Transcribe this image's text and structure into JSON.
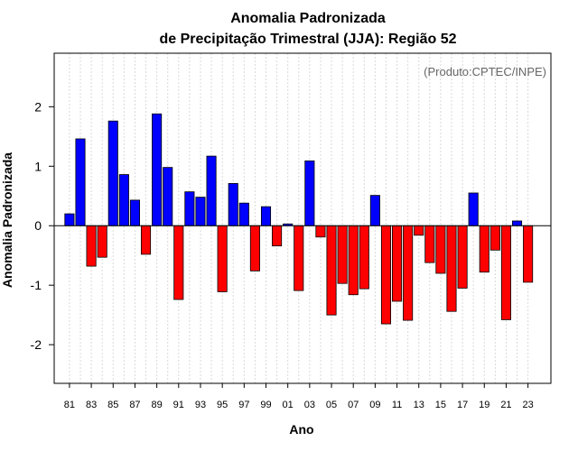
{
  "chart_data": {
    "type": "bar",
    "title_line1": "Anomalia Padronizada",
    "title_line2": "de Precipitação Trimestral (JJA): Região 52",
    "xlabel": "Ano",
    "ylabel": "Anomalia Padronizada",
    "note": "(Produto:CPTEC/INPE)",
    "ylim": [
      -2.65,
      2.9
    ],
    "yticks": [
      -2,
      -1,
      0,
      1,
      2
    ],
    "ytick_labels": [
      "-2",
      "-1",
      "0",
      "1",
      "2"
    ],
    "xtick_labels": [
      "81",
      "83",
      "85",
      "87",
      "89",
      "91",
      "93",
      "95",
      "97",
      "99",
      "01",
      "03",
      "05",
      "07",
      "09",
      "11",
      "13",
      "15",
      "17",
      "19",
      "21",
      "23"
    ],
    "positive_color": "#0000ff",
    "negative_color": "#ff0000",
    "note_color": "#666666",
    "grid_color": "#d9d9d9",
    "categories": [
      "1981",
      "1982",
      "1983",
      "1984",
      "1985",
      "1986",
      "1987",
      "1988",
      "1989",
      "1990",
      "1991",
      "1992",
      "1993",
      "1994",
      "1995",
      "1996",
      "1997",
      "1998",
      "1999",
      "2000",
      "2001",
      "2002",
      "2003",
      "2004",
      "2005",
      "2006",
      "2007",
      "2008",
      "2009",
      "2010",
      "2011",
      "2012",
      "2013",
      "2014",
      "2015",
      "2016",
      "2017",
      "2018",
      "2019",
      "2020",
      "2021",
      "2022",
      "2023"
    ],
    "values": [
      0.2,
      1.46,
      -0.68,
      -0.53,
      1.76,
      0.86,
      0.43,
      -0.48,
      1.88,
      0.98,
      -1.24,
      0.57,
      0.48,
      1.17,
      -1.11,
      0.71,
      0.38,
      -0.76,
      0.32,
      -0.34,
      0.03,
      -1.09,
      1.09,
      -0.19,
      -1.5,
      -0.97,
      -1.16,
      -1.06,
      0.51,
      -1.65,
      -1.27,
      -1.59,
      -0.16,
      -0.62,
      -0.8,
      -1.44,
      -1.05,
      0.55,
      -0.78,
      -0.41,
      -1.58,
      0.08,
      -0.95
    ]
  }
}
